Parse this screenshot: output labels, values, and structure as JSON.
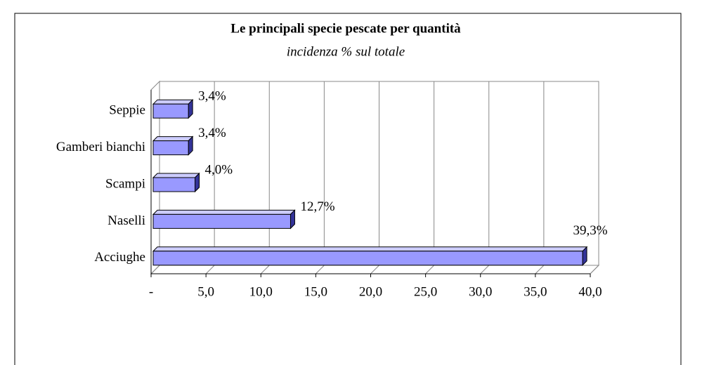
{
  "chart_data": {
    "type": "bar",
    "orientation": "horizontal",
    "title": "Le principali specie pescate per quantità",
    "subtitle": "incidenza % sul totale",
    "categories": [
      "Seppie",
      "Gamberi bianchi",
      "Scampi",
      "Naselli",
      "Acciughe"
    ],
    "values": [
      3.4,
      3.4,
      4.0,
      12.7,
      39.3
    ],
    "value_labels": [
      "3,4%",
      "3,4%",
      "4,0%",
      "12,7%",
      "39,3%"
    ],
    "color": "#9999ff",
    "xlim": [
      0,
      40
    ],
    "xticks": [
      {
        "value": 0,
        "label": "-"
      },
      {
        "value": 5,
        "label": "5,0"
      },
      {
        "value": 10,
        "label": "10,0"
      },
      {
        "value": 15,
        "label": "15,0"
      },
      {
        "value": 20,
        "label": "20,0"
      },
      {
        "value": 25,
        "label": "25,0"
      },
      {
        "value": 30,
        "label": "30,0"
      },
      {
        "value": 35,
        "label": "35,0"
      },
      {
        "value": 40,
        "label": "40,0"
      }
    ],
    "grid": true
  }
}
